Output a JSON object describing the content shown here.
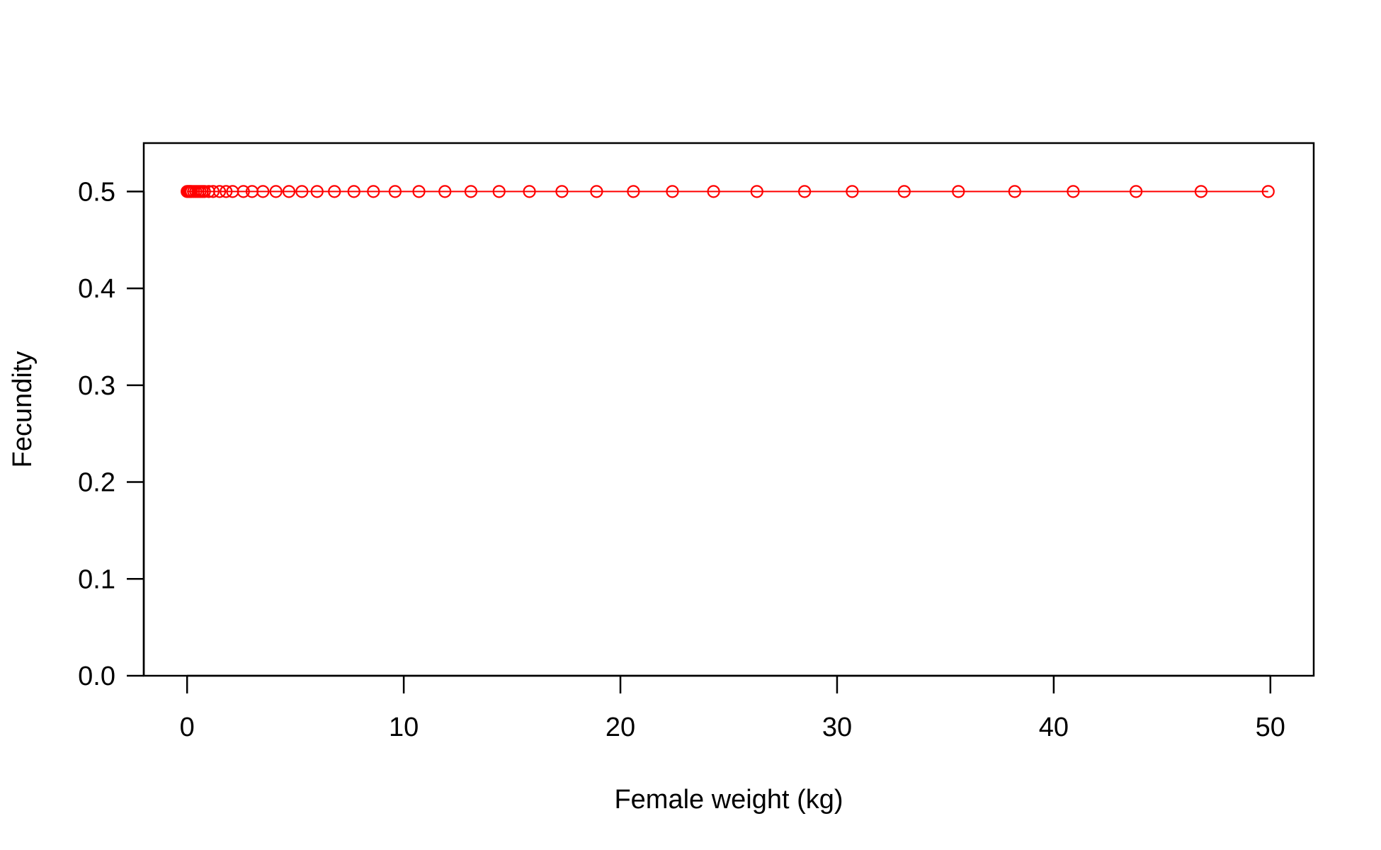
{
  "chart_data": {
    "type": "line",
    "title": "",
    "xlabel": "Female weight (kg)",
    "ylabel": "Fecundity",
    "xlim": [
      -2,
      52
    ],
    "ylim": [
      0,
      0.55
    ],
    "x_ticks": [
      0,
      10,
      20,
      30,
      40,
      50
    ],
    "x_tick_labels": [
      "0",
      "10",
      "20",
      "30",
      "40",
      "50"
    ],
    "y_ticks": [
      0.0,
      0.1,
      0.2,
      0.3,
      0.4,
      0.5
    ],
    "y_tick_labels": [
      "0.0",
      "0.1",
      "0.2",
      "0.3",
      "0.4",
      "0.5"
    ],
    "grid": false,
    "legend": "none",
    "series": [
      {
        "color": "#ff0000",
        "marker": "open-circle",
        "line": true,
        "x": [
          0.0,
          0.05,
          0.1,
          0.15,
          0.2,
          0.3,
          0.4,
          0.5,
          0.6,
          0.7,
          0.8,
          1.0,
          1.2,
          1.5,
          1.8,
          2.1,
          2.6,
          3.0,
          3.5,
          4.1,
          4.7,
          5.3,
          6.0,
          6.8,
          7.7,
          8.6,
          9.6,
          10.7,
          11.9,
          13.1,
          14.4,
          15.8,
          17.3,
          18.9,
          20.6,
          22.4,
          24.3,
          26.3,
          28.5,
          30.7,
          33.1,
          35.6,
          38.2,
          40.9,
          43.8,
          46.8,
          49.9
        ],
        "y": [
          0.5,
          0.5,
          0.5,
          0.5,
          0.5,
          0.5,
          0.5,
          0.5,
          0.5,
          0.5,
          0.5,
          0.5,
          0.5,
          0.5,
          0.5,
          0.5,
          0.5,
          0.5,
          0.5,
          0.5,
          0.5,
          0.5,
          0.5,
          0.5,
          0.5,
          0.5,
          0.5,
          0.5,
          0.5,
          0.5,
          0.5,
          0.5,
          0.5,
          0.5,
          0.5,
          0.5,
          0.5,
          0.5,
          0.5,
          0.5,
          0.5,
          0.5,
          0.5,
          0.5,
          0.5,
          0.5,
          0.5
        ]
      }
    ]
  }
}
